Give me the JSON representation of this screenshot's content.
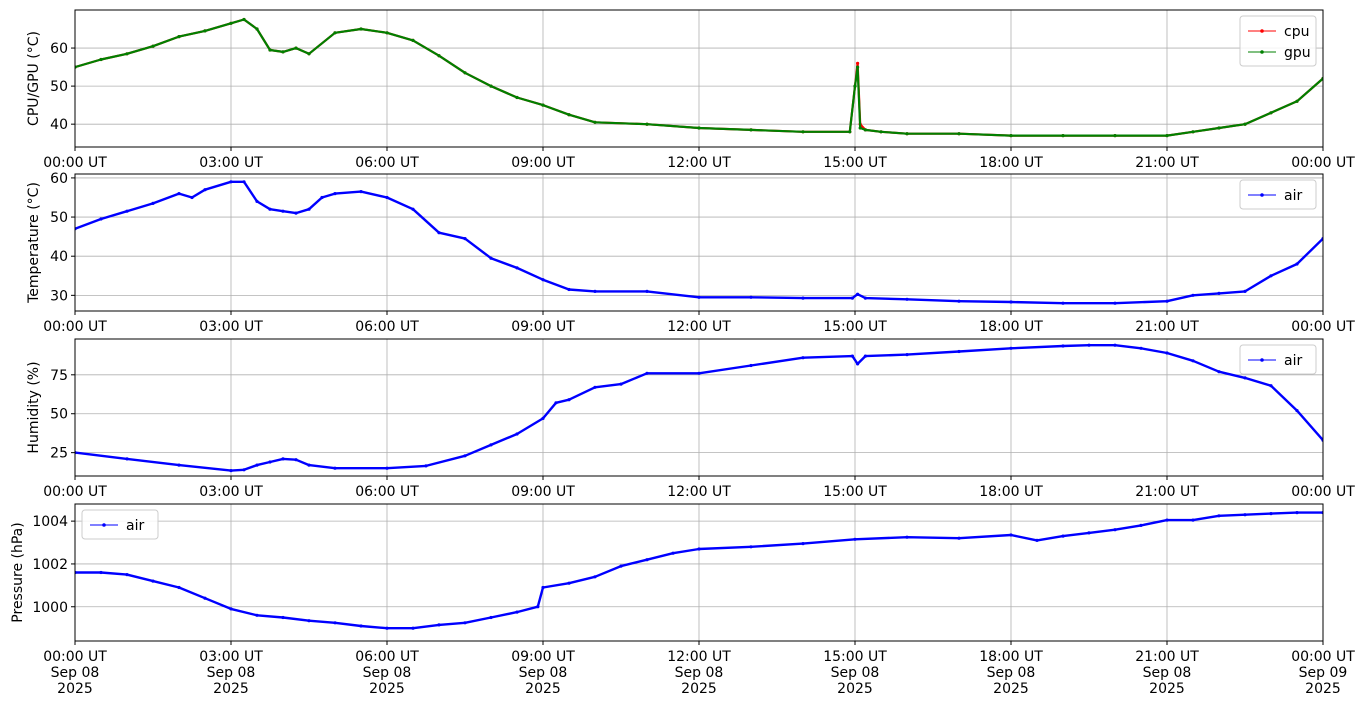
{
  "chart_data": [
    {
      "type": "line",
      "ylabel": "CPU/GPU (°C)",
      "ylim": [
        34,
        70
      ],
      "yticks": [
        40,
        50,
        60
      ],
      "xlim": [
        "2025-09-08 00:00",
        "2025-09-09 00:00"
      ],
      "xticks": [
        "00:00 UT",
        "03:00 UT",
        "06:00 UT",
        "09:00 UT",
        "12:00 UT",
        "15:00 UT",
        "18:00 UT",
        "21:00 UT",
        "00:00 UT"
      ],
      "grid": true,
      "legend": "top-right",
      "x_hours": [
        0,
        0.5,
        1,
        1.5,
        2,
        2.5,
        3,
        3.25,
        3.5,
        3.75,
        4,
        4.25,
        4.5,
        5,
        5.5,
        6,
        6.5,
        7,
        7.5,
        8,
        8.5,
        9,
        9.5,
        10,
        11,
        12,
        13,
        14,
        14.9,
        15.0,
        15.05,
        15.1,
        15.2,
        15.5,
        16,
        17,
        18,
        19,
        20,
        21,
        21.5,
        22,
        22.5,
        23,
        23.5,
        24
      ],
      "series": [
        {
          "name": "cpu",
          "color": "#ff0000",
          "values": [
            55,
            57,
            58.5,
            60.5,
            63,
            64.5,
            66.5,
            67.5,
            65,
            59.5,
            59,
            60,
            58.5,
            64,
            65,
            64,
            62,
            58,
            53.5,
            50,
            47,
            45,
            42.5,
            40.5,
            40,
            39,
            38.5,
            38,
            38,
            50,
            56,
            40,
            38.5,
            38,
            37.5,
            37.5,
            37,
            37,
            37,
            37,
            38,
            39,
            40,
            43,
            46,
            52
          ]
        },
        {
          "name": "gpu",
          "color": "#008000",
          "values": [
            55,
            57,
            58.5,
            60.5,
            63,
            64.5,
            66.5,
            67.5,
            65,
            59.5,
            59,
            60,
            58.5,
            64,
            65,
            64,
            62,
            58,
            53.5,
            50,
            47,
            45,
            42.5,
            40.5,
            40,
            39,
            38.5,
            38,
            38,
            50,
            55,
            39,
            38.5,
            38,
            37.5,
            37.5,
            37,
            37,
            37,
            37,
            38,
            39,
            40,
            43,
            46,
            52
          ]
        }
      ]
    },
    {
      "type": "line",
      "ylabel": "Temperature (°C)",
      "ylim": [
        26,
        61
      ],
      "yticks": [
        30,
        40,
        50,
        60
      ],
      "xlim": [
        "2025-09-08 00:00",
        "2025-09-09 00:00"
      ],
      "xticks": [
        "00:00 UT",
        "03:00 UT",
        "06:00 UT",
        "09:00 UT",
        "12:00 UT",
        "15:00 UT",
        "18:00 UT",
        "21:00 UT",
        "00:00 UT"
      ],
      "grid": true,
      "legend": "top-right",
      "x_hours": [
        0,
        0.5,
        1,
        1.5,
        2,
        2.25,
        2.5,
        3,
        3.25,
        3.5,
        3.75,
        4,
        4.25,
        4.5,
        4.75,
        5,
        5.5,
        6,
        6.5,
        7,
        7.5,
        8,
        8.5,
        9,
        9.5,
        10,
        11,
        12,
        13,
        14,
        14.95,
        15.05,
        15.2,
        16,
        17,
        18,
        19,
        20,
        21,
        21.5,
        22,
        22.5,
        23,
        23.5,
        24
      ],
      "series": [
        {
          "name": "air",
          "color": "#0000ff",
          "values": [
            47,
            49.5,
            51.5,
            53.5,
            56,
            55,
            57,
            59,
            59,
            54,
            52,
            51.5,
            51,
            52,
            55,
            56,
            56.5,
            55,
            52,
            46,
            44.5,
            39.5,
            37,
            34,
            31.5,
            31,
            31,
            29.5,
            29.5,
            29.3,
            29.3,
            30.3,
            29.3,
            29,
            28.5,
            28.3,
            28,
            28,
            28.5,
            30,
            30.5,
            31,
            35,
            38,
            44.5
          ]
        }
      ]
    },
    {
      "type": "line",
      "ylabel": "Humidity (%)",
      "ylim": [
        10,
        98
      ],
      "yticks": [
        25,
        50,
        75
      ],
      "xlim": [
        "2025-09-08 00:00",
        "2025-09-09 00:00"
      ],
      "xticks": [
        "00:00 UT",
        "03:00 UT",
        "06:00 UT",
        "09:00 UT",
        "12:00 UT",
        "15:00 UT",
        "18:00 UT",
        "21:00 UT",
        "00:00 UT"
      ],
      "grid": true,
      "legend": "top-right",
      "x_hours": [
        0,
        1,
        2,
        3,
        3.25,
        3.5,
        3.75,
        4,
        4.25,
        4.5,
        5,
        6,
        6.75,
        7.5,
        8,
        8.5,
        9,
        9.25,
        9.5,
        10,
        10.5,
        11,
        12,
        13,
        14,
        14.95,
        15.05,
        15.2,
        16,
        17,
        18,
        19,
        19.5,
        20,
        20.5,
        21,
        21.5,
        22,
        22.5,
        23,
        23.5,
        24
      ],
      "series": [
        {
          "name": "air",
          "color": "#0000ff",
          "values": [
            25,
            21,
            17,
            13.5,
            14,
            17,
            19,
            21,
            20.5,
            17,
            15,
            15,
            16.5,
            23,
            30,
            37,
            47,
            57,
            59,
            67,
            69,
            76,
            76,
            81,
            86,
            87,
            82,
            87,
            88,
            90,
            92,
            93.5,
            94,
            94,
            92,
            89,
            84,
            77,
            73,
            68,
            52,
            33
          ]
        }
      ]
    },
    {
      "type": "line",
      "ylabel": "Pressure (hPa)",
      "ylim": [
        998.4,
        1004.8
      ],
      "yticks": [
        1000,
        1002,
        1004
      ],
      "xlim": [
        "2025-09-08 00:00",
        "2025-09-09 00:00"
      ],
      "xticks": [
        "00:00 UT\nSep 08\n2025",
        "03:00 UT\nSep 08\n2025",
        "06:00 UT\nSep 08\n2025",
        "09:00 UT\nSep 08\n2025",
        "12:00 UT\nSep 08\n2025",
        "15:00 UT\nSep 08\n2025",
        "18:00 UT\nSep 08\n2025",
        "21:00 UT\nSep 08\n2025",
        "00:00 UT\nSep 09\n2025"
      ],
      "grid": true,
      "legend": "top-left",
      "x_hours": [
        0,
        0.5,
        1,
        1.5,
        2,
        2.5,
        3,
        3.5,
        4,
        4.5,
        5,
        5.5,
        6,
        6.5,
        7,
        7.5,
        8,
        8.5,
        8.9,
        9,
        9.5,
        10,
        10.5,
        11,
        11.5,
        12,
        13,
        14,
        15,
        16,
        17,
        18,
        18.5,
        19,
        19.5,
        20,
        20.5,
        21,
        21.5,
        22,
        22.5,
        23,
        23.5,
        24
      ],
      "series": [
        {
          "name": "air",
          "color": "#0000ff",
          "values": [
            1001.6,
            1001.6,
            1001.5,
            1001.2,
            1000.9,
            1000.4,
            999.9,
            999.6,
            999.5,
            999.35,
            999.25,
            999.1,
            999.0,
            999.0,
            999.15,
            999.25,
            999.5,
            999.75,
            1000.0,
            1000.9,
            1001.1,
            1001.4,
            1001.9,
            1002.2,
            1002.5,
            1002.7,
            1002.8,
            1002.95,
            1003.15,
            1003.25,
            1003.2,
            1003.35,
            1003.1,
            1003.3,
            1003.45,
            1003.6,
            1003.8,
            1004.05,
            1004.05,
            1004.25,
            1004.3,
            1004.35,
            1004.4,
            1004.4
          ]
        }
      ]
    }
  ]
}
